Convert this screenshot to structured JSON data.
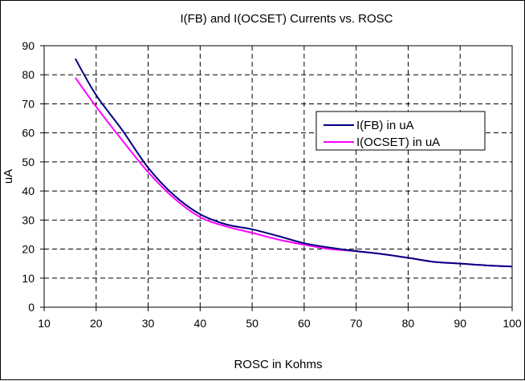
{
  "chart_data": {
    "type": "line",
    "title": "I(FB) and I(OCSET) Currents vs. ROSC",
    "xlabel": "ROSC in Kohms",
    "ylabel": "uA",
    "xlim": [
      10,
      100
    ],
    "ylim": [
      0,
      90
    ],
    "xticks": [
      "10",
      "20",
      "30",
      "40",
      "50",
      "60",
      "70",
      "80",
      "90",
      "100"
    ],
    "yticks": [
      "0",
      "10",
      "20",
      "30",
      "40",
      "50",
      "60",
      "70",
      "80",
      "90"
    ],
    "grid": true,
    "legend_position": "right",
    "series": [
      {
        "name": "I(FB) in uA",
        "color": "#000080",
        "x": [
          16,
          20,
          25,
          30,
          35,
          40,
          45,
          50,
          55,
          60,
          65,
          70,
          75,
          80,
          85,
          90,
          95,
          100
        ],
        "y": [
          85.5,
          73,
          61,
          48,
          38.5,
          32,
          28.5,
          26.8,
          24.5,
          22,
          20.5,
          19.3,
          18.3,
          17,
          15.6,
          15,
          14.4,
          14
        ]
      },
      {
        "name": "I(OCSET) in uA",
        "color": "#FF00FF",
        "x": [
          16,
          20,
          25,
          30,
          35,
          40,
          45,
          50,
          55,
          60,
          65,
          70,
          75,
          80,
          85,
          90,
          95,
          100
        ],
        "y": [
          79,
          69,
          57.5,
          46.5,
          37.5,
          31,
          27.8,
          25.6,
          23.3,
          21.5,
          20,
          19.3,
          18.3,
          17,
          15.6,
          15,
          14.4,
          14
        ]
      }
    ]
  }
}
